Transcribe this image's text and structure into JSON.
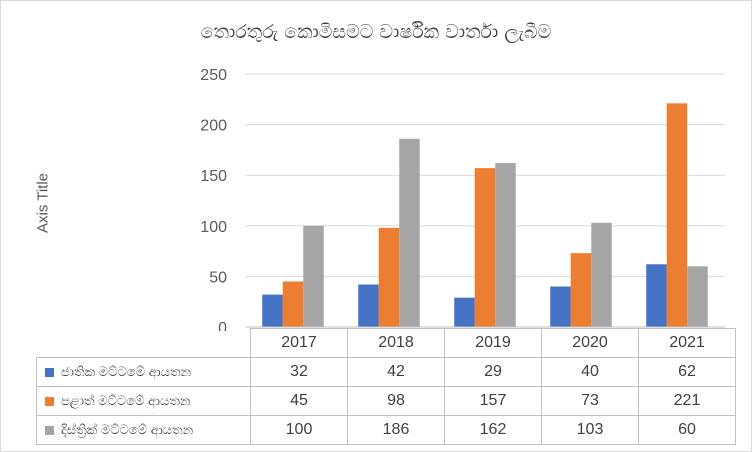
{
  "chart_data": {
    "type": "bar",
    "title": "තොරතුරු කොමිසමට වාර්ෂික වාර්තා ලැබීම",
    "ylabel": "Axis Title",
    "xlabel": "",
    "ylim": [
      0,
      250
    ],
    "yticks": [
      0,
      50,
      100,
      150,
      200,
      250
    ],
    "categories": [
      "2017",
      "2018",
      "2019",
      "2020",
      "2021"
    ],
    "series": [
      {
        "name": "ජාතික මට්ටමේ ආයතන",
        "color": "#4472c4",
        "values": [
          32,
          42,
          29,
          40,
          62
        ]
      },
      {
        "name": "පළාත් මට්ටමේ ආයතන",
        "color": "#ed7d31",
        "values": [
          45,
          98,
          157,
          73,
          221
        ]
      },
      {
        "name": "දිස්ත්‍රික් මට්ටමේ ආයතන",
        "color": "#a5a5a5",
        "values": [
          100,
          186,
          162,
          103,
          60
        ]
      }
    ],
    "grid": true,
    "legend": "data-table"
  }
}
